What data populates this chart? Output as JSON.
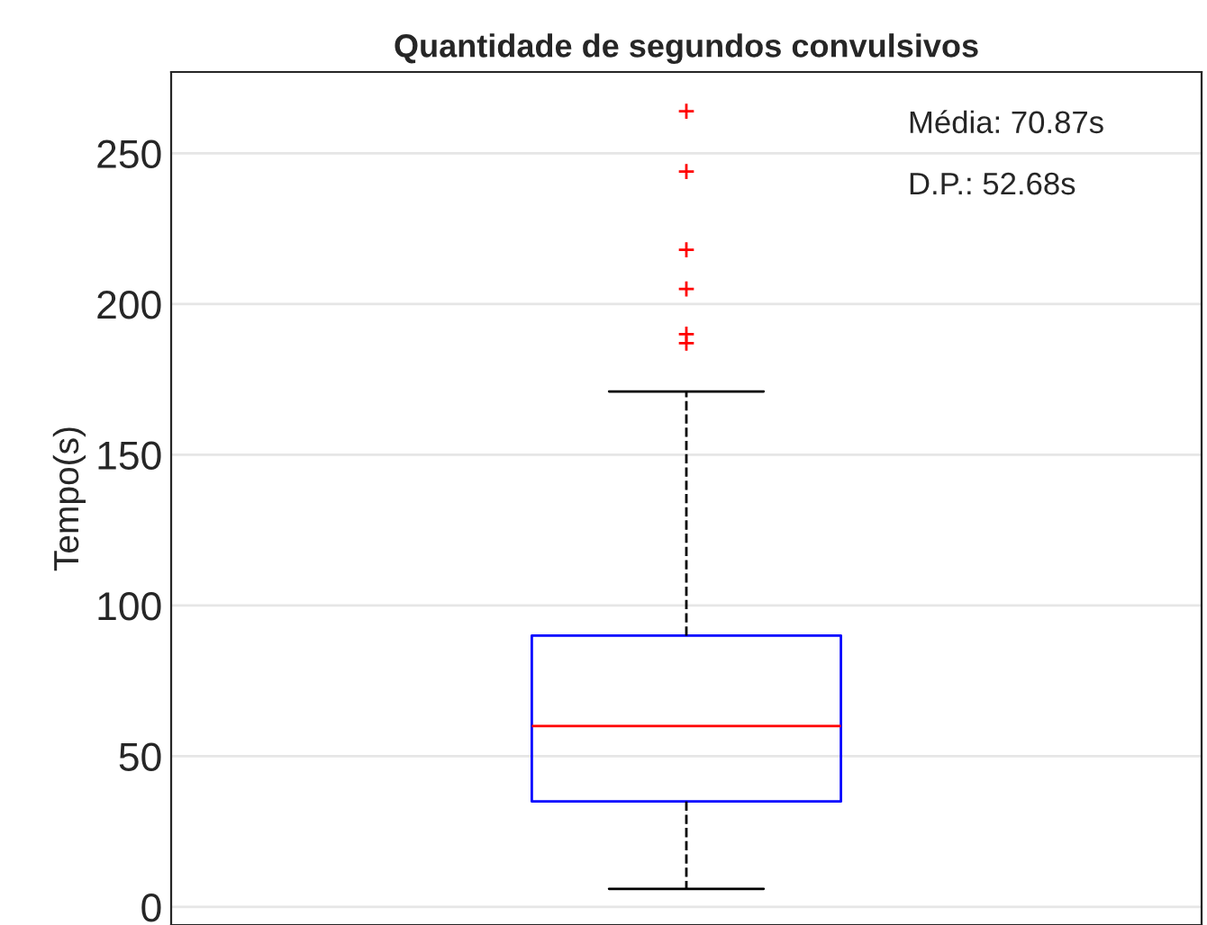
{
  "chart_data": {
    "type": "box",
    "title": "Quantidade de segundos convulsivos",
    "ylabel": "Tempo(s)",
    "categories": [
      null
    ],
    "series": [
      {
        "color": "#0000ff",
        "boxes": [
          {
            "low": 6,
            "q1": 35,
            "median": 60,
            "q3": 90,
            "high": 171,
            "outliers": [
              264,
              244,
              218,
              205,
              190,
              187
            ]
          }
        ]
      }
    ],
    "ylim": [
      -6,
      277
    ],
    "yticks": [
      0,
      50,
      100,
      150,
      200,
      250
    ],
    "grid": "y",
    "marker": "cross",
    "line_style": "dashed",
    "annotations": [
      "Média: 70.87s",
      "D.P.: 52.68s"
    ]
  }
}
